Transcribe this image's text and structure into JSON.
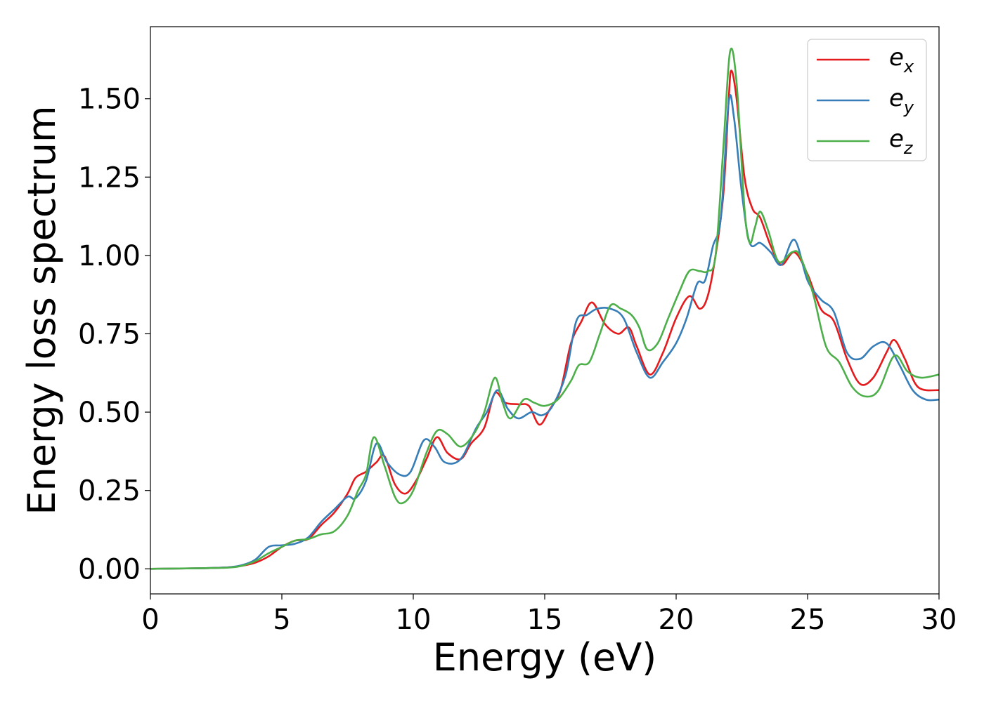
{
  "chart_data": {
    "type": "line",
    "title": "",
    "xlabel": "Energy (eV)",
    "ylabel": "Energy loss spectrum",
    "xlim": [
      0,
      30
    ],
    "ylim": [
      -0.08,
      1.73
    ],
    "xticks": [
      0,
      5,
      10,
      15,
      20,
      25,
      30
    ],
    "xtick_labels": [
      "0",
      "5",
      "10",
      "15",
      "20",
      "25",
      "30"
    ],
    "yticks": [
      0.0,
      0.25,
      0.5,
      0.75,
      1.0,
      1.25,
      1.5
    ],
    "ytick_labels": [
      "0.00",
      "0.25",
      "0.50",
      "0.75",
      "1.00",
      "1.25",
      "1.50"
    ],
    "grid": false,
    "legend_position": "top-right",
    "series": [
      {
        "name": "e_x",
        "legend_base": "e",
        "legend_sub": "x",
        "color": "#e41a1c",
        "points": [
          [
            0,
            0.0
          ],
          [
            2,
            0.002
          ],
          [
            3,
            0.005
          ],
          [
            3.5,
            0.01
          ],
          [
            4,
            0.02
          ],
          [
            4.5,
            0.04
          ],
          [
            5,
            0.07
          ],
          [
            5.5,
            0.09
          ],
          [
            6,
            0.095
          ],
          [
            6.5,
            0.14
          ],
          [
            7,
            0.18
          ],
          [
            7.5,
            0.24
          ],
          [
            7.8,
            0.29
          ],
          [
            8.2,
            0.31
          ],
          [
            8.6,
            0.34
          ],
          [
            8.9,
            0.36
          ],
          [
            9.3,
            0.27
          ],
          [
            9.7,
            0.24
          ],
          [
            10.1,
            0.28
          ],
          [
            10.5,
            0.35
          ],
          [
            10.9,
            0.42
          ],
          [
            11.3,
            0.37
          ],
          [
            11.8,
            0.35
          ],
          [
            12.2,
            0.4
          ],
          [
            12.7,
            0.45
          ],
          [
            13.1,
            0.56
          ],
          [
            13.5,
            0.53
          ],
          [
            14.0,
            0.525
          ],
          [
            14.4,
            0.52
          ],
          [
            14.8,
            0.46
          ],
          [
            15.2,
            0.51
          ],
          [
            15.6,
            0.57
          ],
          [
            16.0,
            0.72
          ],
          [
            16.4,
            0.79
          ],
          [
            16.8,
            0.85
          ],
          [
            17.3,
            0.78
          ],
          [
            17.8,
            0.75
          ],
          [
            18.2,
            0.77
          ],
          [
            18.5,
            0.71
          ],
          [
            19.0,
            0.62
          ],
          [
            19.5,
            0.69
          ],
          [
            20.0,
            0.8
          ],
          [
            20.5,
            0.87
          ],
          [
            20.9,
            0.83
          ],
          [
            21.2,
            0.87
          ],
          [
            21.5,
            1.0
          ],
          [
            21.8,
            1.2
          ],
          [
            22.0,
            1.5
          ],
          [
            22.1,
            1.59
          ],
          [
            22.3,
            1.5
          ],
          [
            22.6,
            1.25
          ],
          [
            22.9,
            1.15
          ],
          [
            23.2,
            1.12
          ],
          [
            23.6,
            1.03
          ],
          [
            24.0,
            0.97
          ],
          [
            24.5,
            1.01
          ],
          [
            25.0,
            0.94
          ],
          [
            25.5,
            0.83
          ],
          [
            26.0,
            0.79
          ],
          [
            26.5,
            0.67
          ],
          [
            27.0,
            0.59
          ],
          [
            27.5,
            0.61
          ],
          [
            28.0,
            0.69
          ],
          [
            28.3,
            0.73
          ],
          [
            28.7,
            0.67
          ],
          [
            29.2,
            0.58
          ],
          [
            30.0,
            0.57
          ]
        ]
      },
      {
        "name": "e_y",
        "legend_base": "e",
        "legend_sub": "y",
        "color": "#377eb8",
        "points": [
          [
            0,
            0.0
          ],
          [
            2,
            0.002
          ],
          [
            3,
            0.005
          ],
          [
            3.5,
            0.012
          ],
          [
            4,
            0.03
          ],
          [
            4.5,
            0.07
          ],
          [
            5,
            0.075
          ],
          [
            5.5,
            0.08
          ],
          [
            6,
            0.1
          ],
          [
            6.5,
            0.15
          ],
          [
            7,
            0.19
          ],
          [
            7.5,
            0.23
          ],
          [
            7.8,
            0.225
          ],
          [
            8.2,
            0.28
          ],
          [
            8.6,
            0.4
          ],
          [
            9.0,
            0.34
          ],
          [
            9.5,
            0.3
          ],
          [
            9.9,
            0.31
          ],
          [
            10.4,
            0.41
          ],
          [
            10.8,
            0.39
          ],
          [
            11.2,
            0.34
          ],
          [
            11.8,
            0.35
          ],
          [
            12.4,
            0.45
          ],
          [
            12.8,
            0.5
          ],
          [
            13.2,
            0.57
          ],
          [
            13.6,
            0.51
          ],
          [
            14.0,
            0.48
          ],
          [
            14.5,
            0.5
          ],
          [
            14.9,
            0.49
          ],
          [
            15.3,
            0.52
          ],
          [
            15.8,
            0.62
          ],
          [
            16.2,
            0.79
          ],
          [
            16.6,
            0.81
          ],
          [
            17.0,
            0.83
          ],
          [
            17.5,
            0.83
          ],
          [
            18.0,
            0.8
          ],
          [
            18.5,
            0.69
          ],
          [
            19.0,
            0.61
          ],
          [
            19.5,
            0.66
          ],
          [
            20.0,
            0.72
          ],
          [
            20.4,
            0.8
          ],
          [
            20.8,
            0.91
          ],
          [
            21.1,
            0.92
          ],
          [
            21.4,
            1.03
          ],
          [
            21.7,
            1.12
          ],
          [
            22.0,
            1.49
          ],
          [
            22.2,
            1.44
          ],
          [
            22.5,
            1.2
          ],
          [
            22.8,
            1.04
          ],
          [
            23.2,
            1.04
          ],
          [
            23.6,
            1.01
          ],
          [
            24.0,
            0.97
          ],
          [
            24.5,
            1.05
          ],
          [
            25.0,
            0.92
          ],
          [
            25.5,
            0.86
          ],
          [
            26.0,
            0.82
          ],
          [
            26.5,
            0.69
          ],
          [
            27.0,
            0.67
          ],
          [
            27.5,
            0.71
          ],
          [
            28.0,
            0.72
          ],
          [
            28.5,
            0.65
          ],
          [
            29.0,
            0.57
          ],
          [
            29.5,
            0.54
          ],
          [
            30.0,
            0.54
          ]
        ]
      },
      {
        "name": "e_z",
        "legend_base": "e",
        "legend_sub": "z",
        "color": "#4daf4a",
        "points": [
          [
            0,
            0.0
          ],
          [
            2,
            0.002
          ],
          [
            3,
            0.004
          ],
          [
            3.5,
            0.01
          ],
          [
            4,
            0.025
          ],
          [
            4.5,
            0.05
          ],
          [
            5,
            0.07
          ],
          [
            5.5,
            0.09
          ],
          [
            6,
            0.095
          ],
          [
            6.5,
            0.11
          ],
          [
            7,
            0.12
          ],
          [
            7.5,
            0.17
          ],
          [
            7.9,
            0.25
          ],
          [
            8.2,
            0.3
          ],
          [
            8.5,
            0.42
          ],
          [
            8.9,
            0.33
          ],
          [
            9.3,
            0.23
          ],
          [
            9.6,
            0.21
          ],
          [
            10.0,
            0.25
          ],
          [
            10.5,
            0.37
          ],
          [
            10.9,
            0.44
          ],
          [
            11.3,
            0.43
          ],
          [
            11.8,
            0.39
          ],
          [
            12.3,
            0.43
          ],
          [
            12.7,
            0.5
          ],
          [
            13.1,
            0.61
          ],
          [
            13.4,
            0.53
          ],
          [
            13.7,
            0.48
          ],
          [
            14.2,
            0.54
          ],
          [
            14.6,
            0.53
          ],
          [
            15.0,
            0.52
          ],
          [
            15.5,
            0.54
          ],
          [
            16.0,
            0.6
          ],
          [
            16.3,
            0.65
          ],
          [
            16.7,
            0.66
          ],
          [
            17.1,
            0.75
          ],
          [
            17.5,
            0.84
          ],
          [
            17.9,
            0.83
          ],
          [
            18.3,
            0.81
          ],
          [
            18.6,
            0.77
          ],
          [
            18.9,
            0.7
          ],
          [
            19.3,
            0.72
          ],
          [
            19.7,
            0.8
          ],
          [
            20.1,
            0.88
          ],
          [
            20.5,
            0.95
          ],
          [
            20.9,
            0.95
          ],
          [
            21.2,
            0.95
          ],
          [
            21.5,
            1.0
          ],
          [
            21.8,
            1.35
          ],
          [
            22.05,
            1.65
          ],
          [
            22.3,
            1.55
          ],
          [
            22.6,
            1.15
          ],
          [
            22.8,
            1.04
          ],
          [
            23.0,
            1.09
          ],
          [
            23.2,
            1.14
          ],
          [
            23.5,
            1.08
          ],
          [
            23.9,
            0.98
          ],
          [
            24.4,
            1.01
          ],
          [
            24.7,
            1.0
          ],
          [
            25.2,
            0.88
          ],
          [
            25.7,
            0.71
          ],
          [
            26.2,
            0.66
          ],
          [
            26.7,
            0.58
          ],
          [
            27.2,
            0.55
          ],
          [
            27.7,
            0.57
          ],
          [
            28.3,
            0.68
          ],
          [
            28.8,
            0.63
          ],
          [
            29.3,
            0.61
          ],
          [
            30.0,
            0.62
          ]
        ]
      }
    ]
  }
}
